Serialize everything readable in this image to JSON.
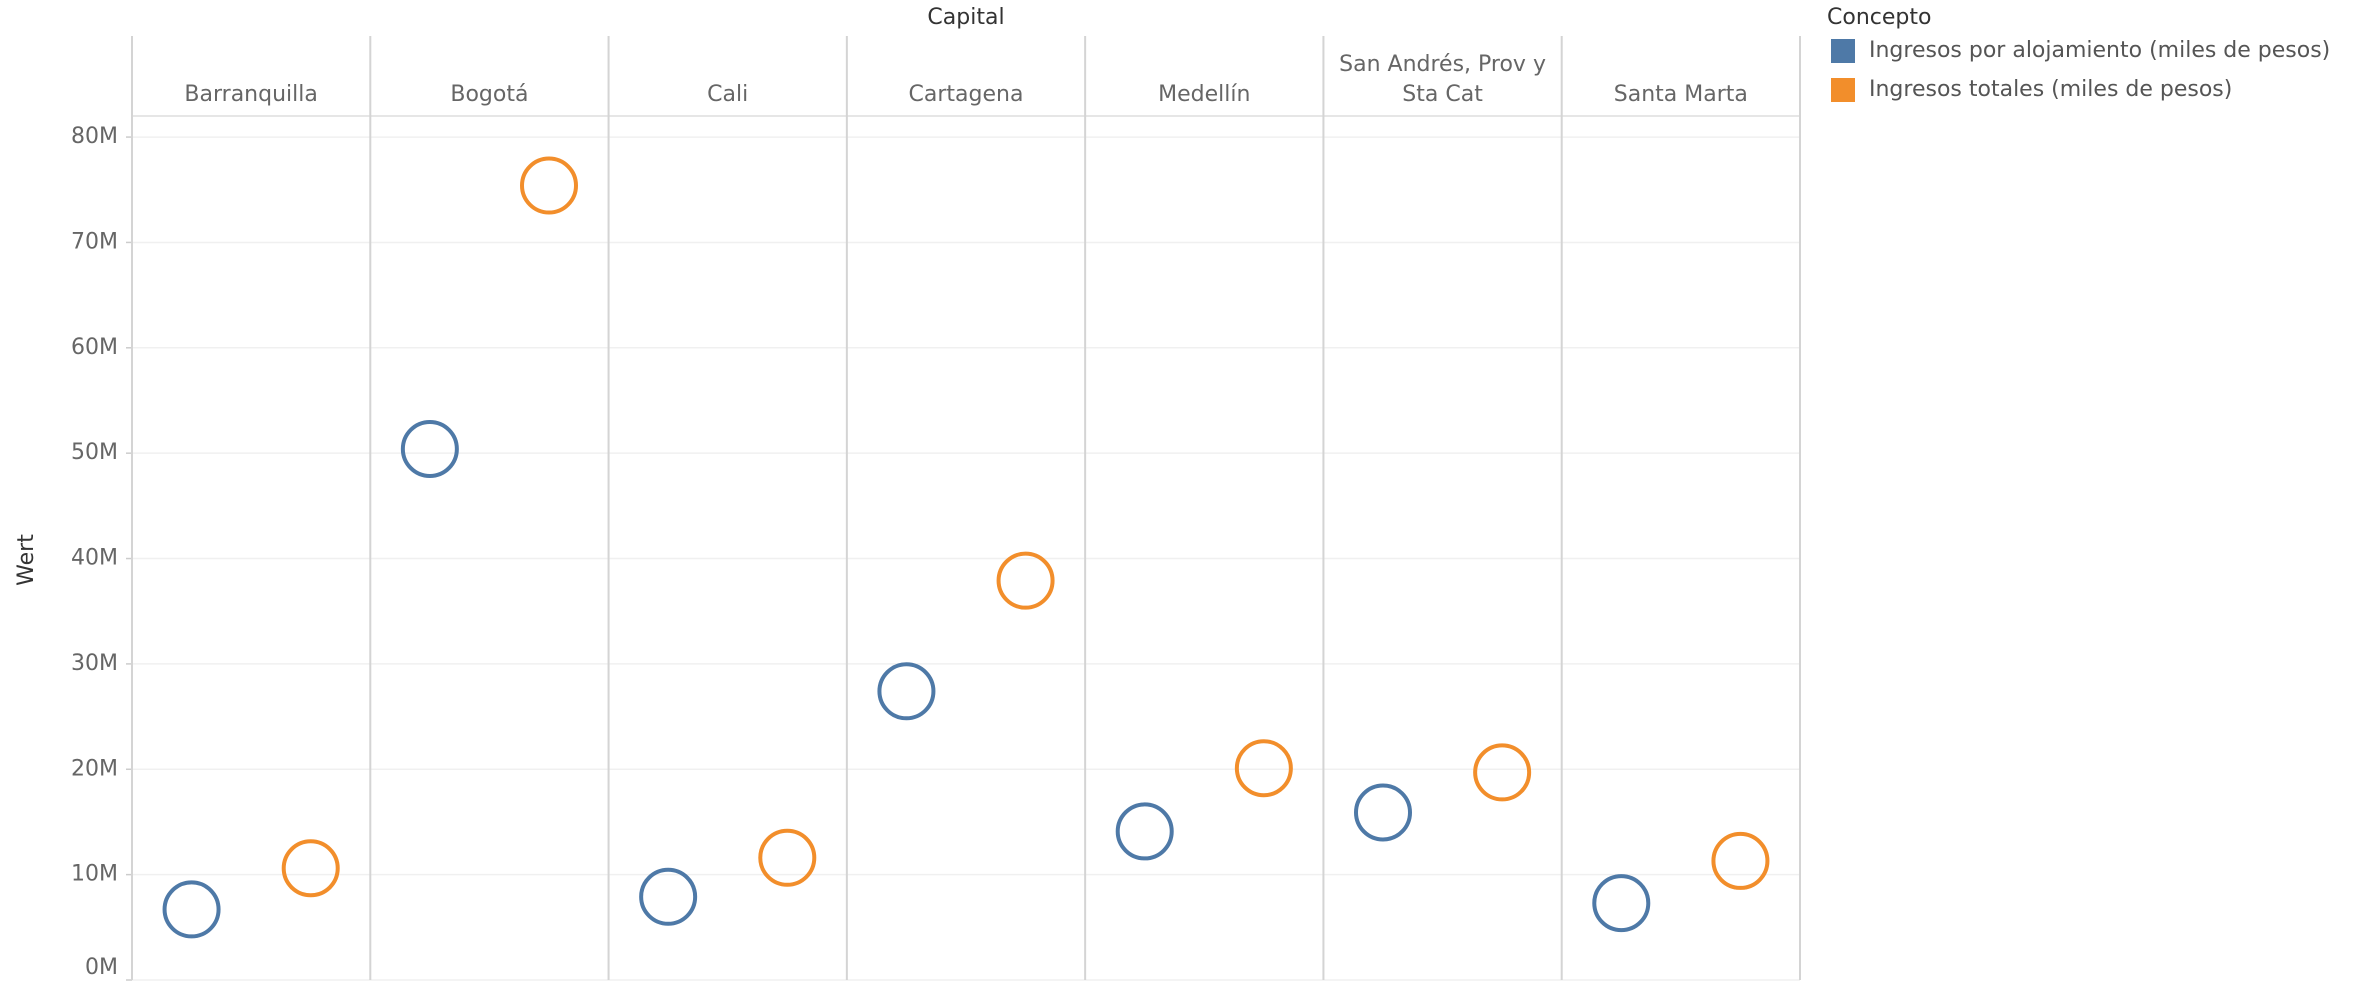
{
  "chart_data": {
    "type": "scatter",
    "title": "Capital",
    "y_label": "Wert",
    "legend_title": "Concepto",
    "legend": "right",
    "grid": true,
    "categories": [
      "Barranquilla",
      "Bogotá",
      "Cali",
      "Cartagena",
      "Medellín",
      "San Andrés, Prov y Sta Cat",
      "Santa Marta"
    ],
    "series": [
      {
        "name": "Ingresos por alojamiento (miles de pesos)",
        "color": "#4e79a7",
        "values": [
          6700000,
          50400000,
          7900000,
          27400000,
          14100000,
          15900000,
          7300000
        ]
      },
      {
        "name": "Ingresos totales (miles de pesos)",
        "color": "#f28e2b",
        "values": [
          10600000,
          75400000,
          11600000,
          37900000,
          20100000,
          19700000,
          11300000
        ]
      }
    ],
    "ylim": [
      0,
      82000000
    ],
    "yticks": [
      {
        "value": 0,
        "label": "0M"
      },
      {
        "value": 10000000,
        "label": "10M"
      },
      {
        "value": 20000000,
        "label": "20M"
      },
      {
        "value": 30000000,
        "label": "30M"
      },
      {
        "value": 40000000,
        "label": "40M"
      },
      {
        "value": 50000000,
        "label": "50M"
      },
      {
        "value": 60000000,
        "label": "60M"
      },
      {
        "value": 70000000,
        "label": "70M"
      },
      {
        "value": 80000000,
        "label": "80M"
      }
    ]
  }
}
